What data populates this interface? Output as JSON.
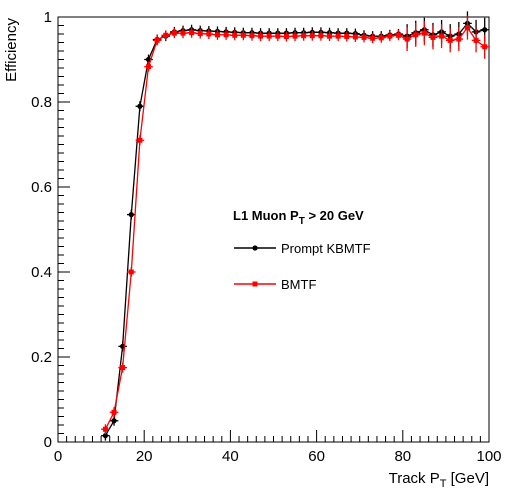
{
  "chart_data": {
    "type": "scatter",
    "xlabel": "Track P",
    "xlabel_sub": "T",
    "xlabel_unit": " [GeV]",
    "ylabel": "Efficiency",
    "xlim": [
      0,
      100
    ],
    "ylim": [
      0,
      1
    ],
    "x_ticks": [
      "0",
      "20",
      "40",
      "60",
      "80",
      "100"
    ],
    "y_ticks": [
      "0",
      "0.2",
      "0.4",
      "0.6",
      "0.8",
      "1"
    ],
    "grid": false,
    "legend": {
      "placement": "center",
      "header_main": "L1 Muon P",
      "header_sub": "T",
      "header_rest": " > 20 GeV"
    },
    "series": [
      {
        "name": "Prompt KBMTF",
        "color": "#000000",
        "marker": "circle",
        "points": [
          [
            11,
            0.015
          ],
          [
            13,
            0.05
          ],
          [
            15,
            0.225
          ],
          [
            17,
            0.535
          ],
          [
            19,
            0.79
          ],
          [
            21,
            0.9
          ],
          [
            23,
            0.947
          ],
          [
            25,
            0.955
          ],
          [
            27,
            0.965
          ],
          [
            29,
            0.968
          ],
          [
            31,
            0.97
          ],
          [
            33,
            0.968
          ],
          [
            35,
            0.967
          ],
          [
            37,
            0.966
          ],
          [
            39,
            0.965
          ],
          [
            41,
            0.964
          ],
          [
            43,
            0.963
          ],
          [
            45,
            0.963
          ],
          [
            47,
            0.962
          ],
          [
            49,
            0.962
          ],
          [
            51,
            0.962
          ],
          [
            53,
            0.962
          ],
          [
            55,
            0.963
          ],
          [
            57,
            0.963
          ],
          [
            59,
            0.964
          ],
          [
            61,
            0.964
          ],
          [
            63,
            0.963
          ],
          [
            65,
            0.962
          ],
          [
            67,
            0.962
          ],
          [
            69,
            0.961
          ],
          [
            71,
            0.957
          ],
          [
            73,
            0.955
          ],
          [
            75,
            0.955
          ],
          [
            77,
            0.958
          ],
          [
            79,
            0.96
          ],
          [
            81,
            0.955
          ],
          [
            83,
            0.963
          ],
          [
            85,
            0.97
          ],
          [
            87,
            0.958
          ],
          [
            89,
            0.965
          ],
          [
            91,
            0.955
          ],
          [
            93,
            0.96
          ],
          [
            95,
            0.985
          ],
          [
            97,
            0.965
          ],
          [
            99,
            0.97
          ]
        ]
      },
      {
        "name": "BMTF",
        "color": "#ff0000",
        "marker": "square",
        "points": [
          [
            11,
            0.03
          ],
          [
            13,
            0.07
          ],
          [
            15,
            0.175
          ],
          [
            17,
            0.4
          ],
          [
            19,
            0.71
          ],
          [
            21,
            0.883
          ],
          [
            23,
            0.945
          ],
          [
            25,
            0.957
          ],
          [
            27,
            0.962
          ],
          [
            29,
            0.962
          ],
          [
            31,
            0.963
          ],
          [
            33,
            0.961
          ],
          [
            35,
            0.96
          ],
          [
            37,
            0.958
          ],
          [
            39,
            0.958
          ],
          [
            41,
            0.957
          ],
          [
            43,
            0.957
          ],
          [
            45,
            0.956
          ],
          [
            47,
            0.955
          ],
          [
            49,
            0.955
          ],
          [
            51,
            0.955
          ],
          [
            53,
            0.954
          ],
          [
            55,
            0.955
          ],
          [
            57,
            0.956
          ],
          [
            59,
            0.956
          ],
          [
            61,
            0.956
          ],
          [
            63,
            0.955
          ],
          [
            65,
            0.955
          ],
          [
            67,
            0.954
          ],
          [
            69,
            0.953
          ],
          [
            71,
            0.952
          ],
          [
            73,
            0.95
          ],
          [
            75,
            0.951
          ],
          [
            77,
            0.955
          ],
          [
            79,
            0.957
          ],
          [
            81,
            0.948
          ],
          [
            83,
            0.958
          ],
          [
            85,
            0.962
          ],
          [
            87,
            0.952
          ],
          [
            89,
            0.955
          ],
          [
            91,
            0.945
          ],
          [
            93,
            0.948
          ],
          [
            95,
            0.975
          ],
          [
            97,
            0.945
          ],
          [
            99,
            0.93
          ]
        ]
      }
    ]
  }
}
